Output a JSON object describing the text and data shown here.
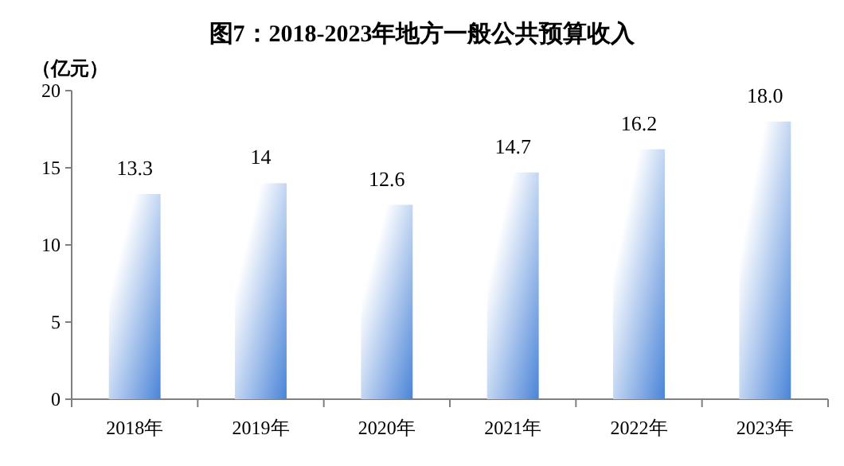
{
  "chart_data": {
    "type": "bar",
    "title": "图7：2018-2023年地方一般公共预算收入",
    "ylabel": "（亿元）",
    "categories": [
      "2018年",
      "2019年",
      "2020年",
      "2021年",
      "2022年",
      "2023年"
    ],
    "values": [
      13.3,
      14,
      12.6,
      14.7,
      16.2,
      18.0
    ],
    "value_labels": [
      "13.3",
      "14",
      "12.6",
      "14.7",
      "16.2",
      "18.0"
    ],
    "color": "#4a84d8",
    "ylim": [
      0,
      20
    ],
    "yticks": [
      0,
      5,
      10,
      15,
      20
    ]
  }
}
